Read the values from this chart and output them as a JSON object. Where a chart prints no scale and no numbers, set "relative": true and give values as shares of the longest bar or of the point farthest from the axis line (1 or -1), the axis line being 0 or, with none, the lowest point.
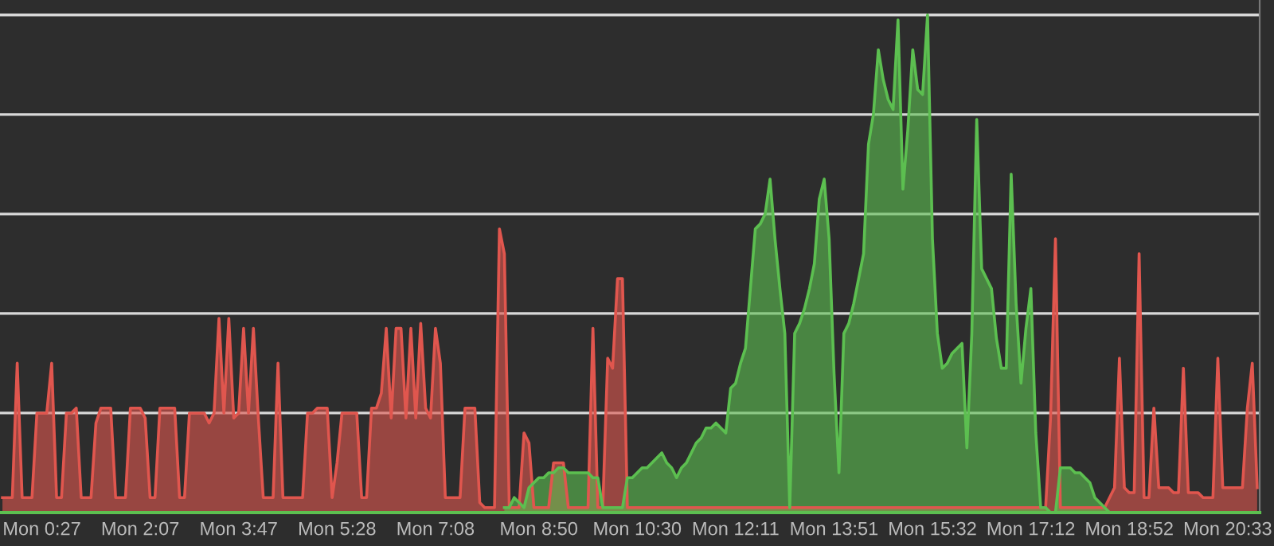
{
  "chart_data": {
    "type": "area",
    "relative": true,
    "grid": "y",
    "categories": [
      null,
      null,
      null,
      null,
      null,
      null,
      null,
      null,
      "Mon 0:27",
      null,
      null,
      null,
      null,
      null,
      null,
      null,
      null,
      null,
      null,
      null,
      null,
      null,
      null,
      null,
      null,
      null,
      null,
      null,
      "Mon 2:07",
      null,
      null,
      null,
      null,
      null,
      null,
      null,
      null,
      null,
      null,
      null,
      null,
      null,
      null,
      null,
      null,
      null,
      null,
      null,
      "Mon 3:47",
      null,
      null,
      null,
      null,
      null,
      null,
      null,
      null,
      null,
      null,
      null,
      null,
      null,
      null,
      null,
      null,
      null,
      null,
      null,
      "Mon 5:28",
      null,
      null,
      null,
      null,
      null,
      null,
      null,
      null,
      null,
      null,
      null,
      null,
      null,
      null,
      null,
      null,
      null,
      null,
      null,
      "Mon 7:08",
      null,
      null,
      null,
      null,
      null,
      null,
      null,
      null,
      null,
      null,
      null,
      null,
      null,
      null,
      null,
      null,
      null,
      null,
      null,
      null,
      "Mon 8:50",
      null,
      null,
      null,
      null,
      null,
      null,
      null,
      null,
      null,
      null,
      null,
      null,
      null,
      null,
      null,
      null,
      null,
      null,
      null,
      "Mon 10:30",
      null,
      null,
      null,
      null,
      null,
      null,
      null,
      null,
      null,
      null,
      null,
      null,
      null,
      null,
      null,
      null,
      null,
      null,
      null,
      "Mon 12:11",
      null,
      null,
      null,
      null,
      null,
      null,
      null,
      null,
      null,
      null,
      null,
      null,
      null,
      null,
      null,
      null,
      null,
      null,
      null,
      "Mon 13:51",
      null,
      null,
      null,
      null,
      null,
      null,
      null,
      null,
      null,
      null,
      null,
      null,
      null,
      null,
      null,
      null,
      null,
      null,
      null,
      "Mon 15:32",
      null,
      null,
      null,
      null,
      null,
      null,
      null,
      null,
      null,
      null,
      null,
      null,
      null,
      null,
      null,
      null,
      null,
      null,
      null,
      "Mon 17:12",
      null,
      null,
      null,
      null,
      null,
      null,
      null,
      null,
      null,
      null,
      null,
      null,
      null,
      null,
      null,
      null,
      null,
      null,
      null,
      "Mon 18:52",
      null,
      null,
      null,
      null,
      null,
      null,
      null,
      null,
      null,
      null,
      null,
      null,
      null,
      null,
      null,
      null,
      null,
      null,
      null,
      "Mon 20:33",
      null,
      null,
      null,
      null,
      null,
      null
    ],
    "marker": "none",
    "line_style": "solid",
    "series": [
      {
        "color": "#e0564e",
        "values": [
          0.03,
          0.03,
          0.03,
          0.3,
          0.03,
          0.03,
          0.03,
          0.2,
          0.2,
          0.2,
          0.3,
          0.03,
          0.03,
          0.2,
          0.2,
          0.21,
          0.03,
          0.03,
          0.03,
          0.18,
          0.21,
          0.21,
          0.21,
          0.03,
          0.03,
          0.03,
          0.21,
          0.21,
          0.21,
          0.19,
          0.03,
          0.03,
          0.21,
          0.21,
          0.21,
          0.21,
          0.03,
          0.03,
          0.2,
          0.2,
          0.2,
          0.2,
          0.18,
          0.2,
          0.39,
          0.2,
          0.39,
          0.19,
          0.2,
          0.37,
          0.2,
          0.37,
          0.19,
          0.03,
          0.03,
          0.03,
          0.3,
          0.03,
          0.03,
          0.03,
          0.03,
          0.03,
          0.2,
          0.2,
          0.21,
          0.21,
          0.21,
          0.03,
          0.1,
          0.2,
          0.2,
          0.2,
          0.2,
          0.03,
          0.03,
          0.21,
          0.21,
          0.24,
          0.37,
          0.19,
          0.37,
          0.37,
          0.19,
          0.37,
          0.19,
          0.38,
          0.21,
          0.19,
          0.37,
          0.3,
          0.03,
          0.03,
          0.03,
          0.03,
          0.21,
          0.21,
          0.21,
          0.02,
          0.01,
          0.01,
          0.01,
          0.57,
          0.52,
          0.01,
          0.01,
          0.01,
          0.16,
          0.14,
          0.01,
          0.01,
          0.01,
          0.01,
          0.1,
          0.1,
          0.1,
          0.01,
          0.01,
          0.01,
          0.01,
          0.01,
          0.37,
          0.01,
          0.01,
          0.31,
          0.29,
          0.47,
          0.47,
          0.01,
          0.01,
          0.01,
          0.01,
          0.01,
          0.01,
          0.01,
          0.01,
          0.01,
          0.01,
          0.01,
          0.01,
          0.01,
          0.01,
          0.01,
          0.01,
          0.01,
          0.01,
          0.01,
          0.01,
          0.01,
          0.01,
          0.01,
          0.01,
          0.01,
          0.01,
          0.01,
          0.01,
          0.01,
          0.01,
          0.01,
          0.01,
          0.01,
          0.01,
          0.01,
          0.01,
          0.01,
          0.01,
          0.01,
          0.01,
          0.01,
          0.01,
          0.01,
          0.01,
          0.01,
          0.01,
          0.01,
          0.01,
          0.01,
          0.01,
          0.01,
          0.01,
          0.01,
          0.01,
          0.01,
          0.01,
          0.01,
          0.01,
          0.01,
          0.01,
          0.01,
          0.01,
          0.01,
          0.01,
          0.01,
          0.01,
          0.01,
          0.01,
          0.01,
          0.01,
          0.01,
          0.01,
          0.01,
          0.01,
          0.01,
          0.01,
          0.01,
          0.01,
          0.01,
          0.01,
          0.01,
          0.01,
          0.01,
          0.01,
          0.01,
          0.01,
          0.19,
          0.55,
          0.01,
          0.01,
          0.01,
          0.01,
          0.01,
          0.01,
          0.01,
          0.01,
          0.01,
          0.01,
          0.03,
          0.05,
          0.31,
          0.05,
          0.04,
          0.04,
          0.52,
          0.03,
          0.03,
          0.21,
          0.05,
          0.05,
          0.05,
          0.04,
          0.04,
          0.29,
          0.04,
          0.04,
          0.04,
          0.03,
          0.03,
          0.03,
          0.31,
          0.05,
          0.05,
          0.05,
          0.05,
          0.05,
          0.21,
          0.3,
          0.05
        ]
      },
      {
        "color": "#5cbf50",
        "values": [
          null,
          null,
          null,
          null,
          null,
          null,
          null,
          null,
          null,
          null,
          null,
          null,
          null,
          null,
          null,
          null,
          null,
          null,
          null,
          null,
          null,
          null,
          null,
          null,
          null,
          null,
          null,
          null,
          null,
          null,
          null,
          null,
          null,
          null,
          null,
          null,
          null,
          null,
          null,
          null,
          null,
          null,
          null,
          null,
          null,
          null,
          null,
          null,
          null,
          null,
          null,
          null,
          null,
          null,
          null,
          null,
          null,
          null,
          null,
          null,
          null,
          null,
          null,
          null,
          null,
          null,
          null,
          null,
          null,
          null,
          null,
          null,
          null,
          null,
          null,
          null,
          null,
          null,
          null,
          null,
          null,
          null,
          null,
          null,
          null,
          null,
          null,
          null,
          null,
          null,
          null,
          null,
          null,
          null,
          null,
          null,
          null,
          null,
          null,
          null,
          null,
          null,
          0.01,
          0.01,
          0.03,
          0.02,
          0.01,
          0.05,
          0.06,
          0.07,
          0.07,
          0.08,
          0.08,
          0.09,
          0.09,
          0.08,
          0.08,
          0.08,
          0.08,
          0.08,
          0.07,
          0.07,
          0.01,
          0.01,
          0.01,
          0.01,
          0.01,
          0.07,
          0.07,
          0.08,
          0.09,
          0.09,
          0.1,
          0.11,
          0.12,
          0.1,
          0.09,
          0.07,
          0.09,
          0.1,
          0.12,
          0.14,
          0.15,
          0.17,
          0.17,
          0.18,
          0.17,
          0.16,
          0.25,
          0.26,
          0.3,
          0.33,
          0.45,
          0.57,
          0.58,
          0.6,
          0.67,
          0.55,
          0.45,
          0.36,
          0.01,
          0.36,
          0.38,
          0.41,
          0.45,
          0.5,
          0.63,
          0.67,
          0.55,
          0.28,
          0.08,
          0.36,
          0.38,
          0.42,
          0.47,
          0.52,
          0.74,
          0.8,
          0.93,
          0.87,
          0.83,
          0.81,
          0.99,
          0.65,
          0.77,
          0.93,
          0.85,
          0.84,
          1.0,
          0.55,
          0.36,
          0.29,
          0.3,
          0.32,
          0.33,
          0.34,
          0.13,
          0.36,
          0.79,
          0.49,
          0.47,
          0.45,
          0.35,
          0.29,
          0.29,
          0.68,
          0.42,
          0.26,
          0.37,
          0.45,
          0.16,
          0.01,
          0.01,
          0,
          0,
          0.09,
          0.09,
          0.09,
          0.08,
          0.08,
          0.07,
          0.06,
          0.03,
          0.02,
          0.01,
          0,
          null,
          null,
          null,
          null,
          null,
          null,
          null,
          null,
          null,
          null,
          null,
          null,
          null,
          null,
          null,
          null,
          null,
          null,
          null,
          null,
          null,
          null,
          null,
          null,
          null,
          null,
          null,
          null,
          null,
          null
        ]
      }
    ]
  }
}
